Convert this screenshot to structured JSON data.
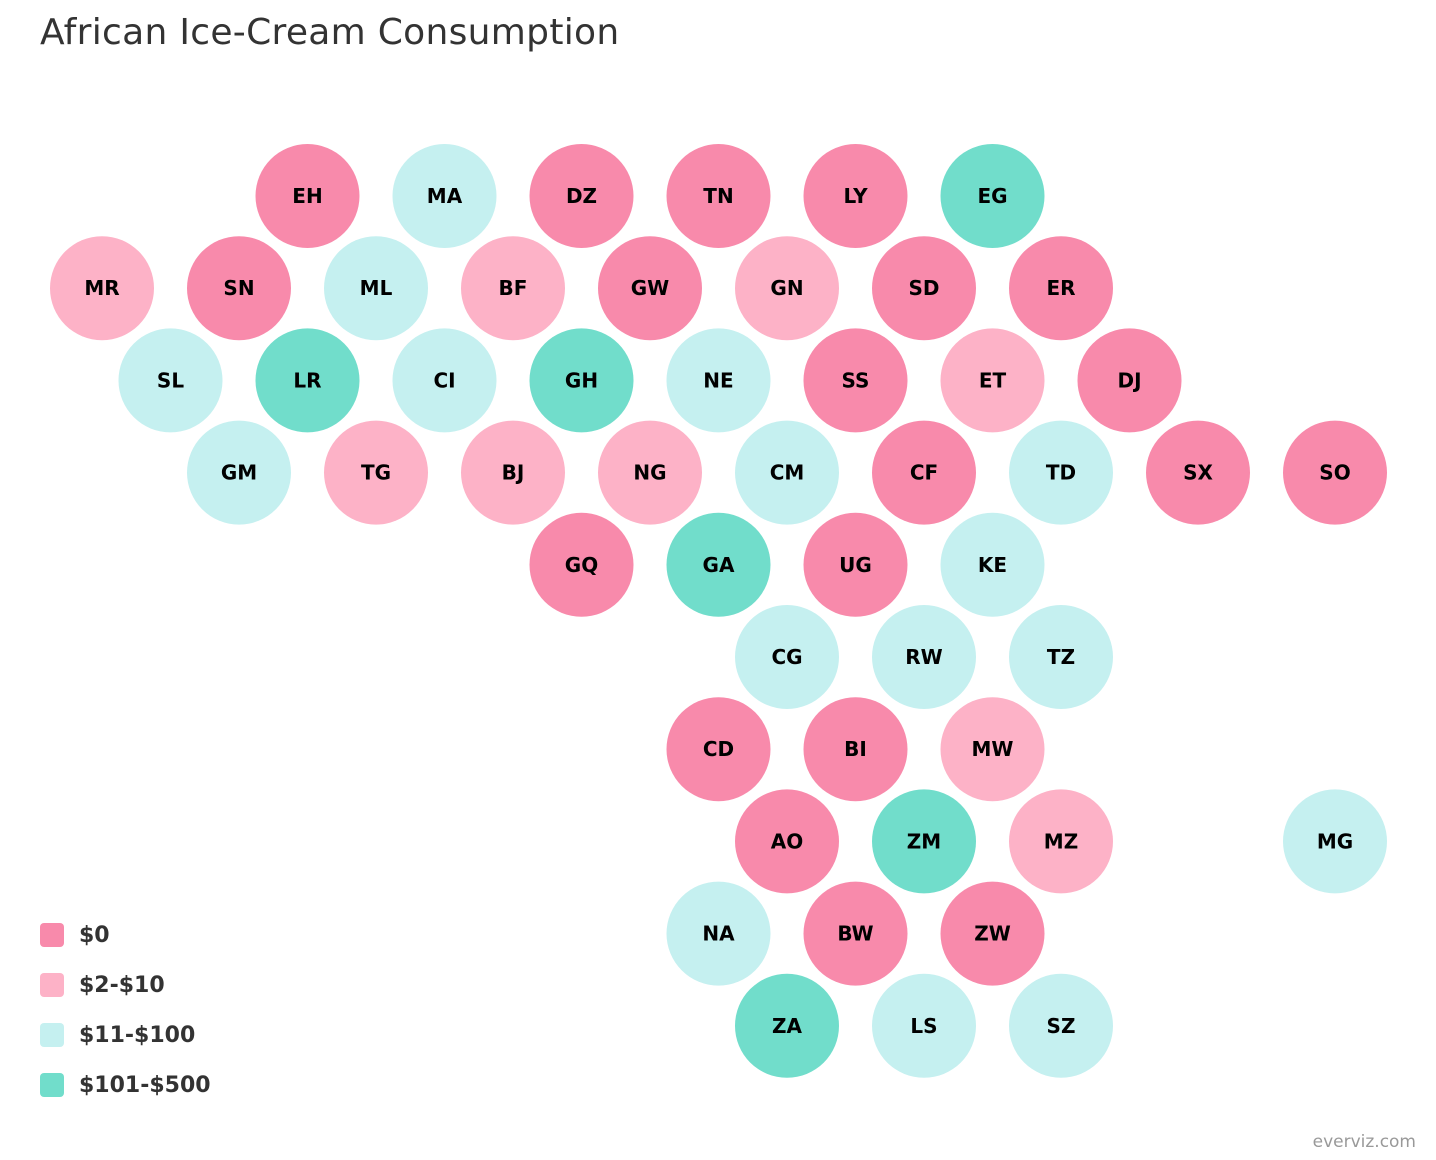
{
  "chart_data": {
    "type": "tilemap",
    "title": "African Ice-Cream Consumption",
    "credits": "everviz.com",
    "legend_position": "bottom-left",
    "color_classes": [
      {
        "label": "$0",
        "color": "#f88aab"
      },
      {
        "label": "$2-$10",
        "color": "#fdb2c7"
      },
      {
        "label": "$11-$100",
        "color": "#c5f0f0"
      },
      {
        "label": "$101-$500",
        "color": "#71ddcb"
      }
    ],
    "tiles": [
      {
        "code": "EH",
        "row": 0,
        "col": 3,
        "class": 0
      },
      {
        "code": "MA",
        "row": 0,
        "col": 5,
        "class": 2
      },
      {
        "code": "DZ",
        "row": 0,
        "col": 7,
        "class": 0
      },
      {
        "code": "TN",
        "row": 0,
        "col": 9,
        "class": 0
      },
      {
        "code": "LY",
        "row": 0,
        "col": 11,
        "class": 0
      },
      {
        "code": "EG",
        "row": 0,
        "col": 13,
        "class": 3
      },
      {
        "code": "MR",
        "row": 1,
        "col": 0,
        "class": 1
      },
      {
        "code": "SN",
        "row": 1,
        "col": 2,
        "class": 0
      },
      {
        "code": "ML",
        "row": 1,
        "col": 4,
        "class": 2
      },
      {
        "code": "BF",
        "row": 1,
        "col": 6,
        "class": 1
      },
      {
        "code": "GW",
        "row": 1,
        "col": 8,
        "class": 0
      },
      {
        "code": "GN",
        "row": 1,
        "col": 10,
        "class": 1
      },
      {
        "code": "SD",
        "row": 1,
        "col": 12,
        "class": 0
      },
      {
        "code": "ER",
        "row": 1,
        "col": 14,
        "class": 0
      },
      {
        "code": "SL",
        "row": 2,
        "col": 1,
        "class": 2
      },
      {
        "code": "LR",
        "row": 2,
        "col": 3,
        "class": 3
      },
      {
        "code": "CI",
        "row": 2,
        "col": 5,
        "class": 2
      },
      {
        "code": "GH",
        "row": 2,
        "col": 7,
        "class": 3
      },
      {
        "code": "NE",
        "row": 2,
        "col": 9,
        "class": 2
      },
      {
        "code": "SS",
        "row": 2,
        "col": 11,
        "class": 0
      },
      {
        "code": "ET",
        "row": 2,
        "col": 13,
        "class": 1
      },
      {
        "code": "DJ",
        "row": 2,
        "col": 15,
        "class": 0
      },
      {
        "code": "GM",
        "row": 3,
        "col": 2,
        "class": 2
      },
      {
        "code": "TG",
        "row": 3,
        "col": 4,
        "class": 1
      },
      {
        "code": "BJ",
        "row": 3,
        "col": 6,
        "class": 1
      },
      {
        "code": "NG",
        "row": 3,
        "col": 8,
        "class": 1
      },
      {
        "code": "CM",
        "row": 3,
        "col": 10,
        "class": 2
      },
      {
        "code": "CF",
        "row": 3,
        "col": 12,
        "class": 0
      },
      {
        "code": "TD",
        "row": 3,
        "col": 14,
        "class": 2
      },
      {
        "code": "SX",
        "row": 3,
        "col": 16,
        "class": 0
      },
      {
        "code": "SO",
        "row": 3,
        "col": 18,
        "class": 0
      },
      {
        "code": "GQ",
        "row": 4,
        "col": 7,
        "class": 0
      },
      {
        "code": "GA",
        "row": 4,
        "col": 9,
        "class": 3
      },
      {
        "code": "UG",
        "row": 4,
        "col": 11,
        "class": 0
      },
      {
        "code": "KE",
        "row": 4,
        "col": 13,
        "class": 2
      },
      {
        "code": "CG",
        "row": 5,
        "col": 10,
        "class": 2
      },
      {
        "code": "RW",
        "row": 5,
        "col": 12,
        "class": 2
      },
      {
        "code": "TZ",
        "row": 5,
        "col": 14,
        "class": 2
      },
      {
        "code": "CD",
        "row": 6,
        "col": 9,
        "class": 0
      },
      {
        "code": "BI",
        "row": 6,
        "col": 11,
        "class": 0
      },
      {
        "code": "MW",
        "row": 6,
        "col": 13,
        "class": 1
      },
      {
        "code": "AO",
        "row": 7,
        "col": 10,
        "class": 0
      },
      {
        "code": "ZM",
        "row": 7,
        "col": 12,
        "class": 3
      },
      {
        "code": "MZ",
        "row": 7,
        "col": 14,
        "class": 1
      },
      {
        "code": "MG",
        "row": 7,
        "col": 18,
        "class": 2
      },
      {
        "code": "NA",
        "row": 8,
        "col": 9,
        "class": 2
      },
      {
        "code": "BW",
        "row": 8,
        "col": 11,
        "class": 0
      },
      {
        "code": "ZW",
        "row": 8,
        "col": 13,
        "class": 0
      },
      {
        "code": "ZA",
        "row": 9,
        "col": 10,
        "class": 3
      },
      {
        "code": "LS",
        "row": 9,
        "col": 12,
        "class": 2
      },
      {
        "code": "SZ",
        "row": 9,
        "col": 14,
        "class": 2
      }
    ]
  }
}
